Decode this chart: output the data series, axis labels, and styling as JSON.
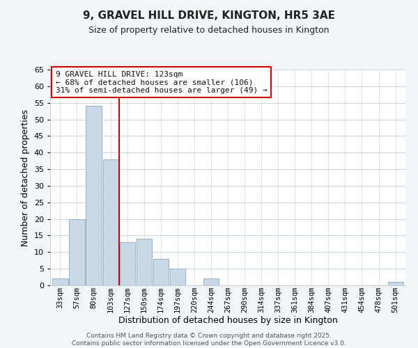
{
  "title": "9, GRAVEL HILL DRIVE, KINGTON, HR5 3AE",
  "subtitle": "Size of property relative to detached houses in Kington",
  "xlabel": "Distribution of detached houses by size in Kington",
  "ylabel": "Number of detached properties",
  "bin_labels": [
    "33sqm",
    "57sqm",
    "80sqm",
    "103sqm",
    "127sqm",
    "150sqm",
    "174sqm",
    "197sqm",
    "220sqm",
    "244sqm",
    "267sqm",
    "290sqm",
    "314sqm",
    "337sqm",
    "361sqm",
    "384sqm",
    "407sqm",
    "431sqm",
    "454sqm",
    "478sqm",
    "501sqm"
  ],
  "bar_heights": [
    2,
    20,
    54,
    38,
    13,
    14,
    8,
    5,
    0,
    2,
    0,
    0,
    0,
    0,
    0,
    0,
    0,
    0,
    0,
    0,
    1
  ],
  "bar_color": "#c9d9e8",
  "bar_edge_color": "#9ab5cc",
  "vline_index": 4,
  "vline_color": "#cc0000",
  "ylim": [
    0,
    65
  ],
  "yticks": [
    0,
    5,
    10,
    15,
    20,
    25,
    30,
    35,
    40,
    45,
    50,
    55,
    60,
    65
  ],
  "annotation_title": "9 GRAVEL HILL DRIVE: 123sqm",
  "annotation_line1": "← 68% of detached houses are smaller (106)",
  "annotation_line2": "31% of semi-detached houses are larger (49) →",
  "footer_line1": "Contains HM Land Registry data © Crown copyright and database right 2025.",
  "footer_line2": "Contains public sector information licensed under the Open Government Licence v3.0.",
  "fig_bg_color": "#f0f5f8",
  "plot_bg_color": "#ffffff",
  "grid_color": "#ccd8e0"
}
